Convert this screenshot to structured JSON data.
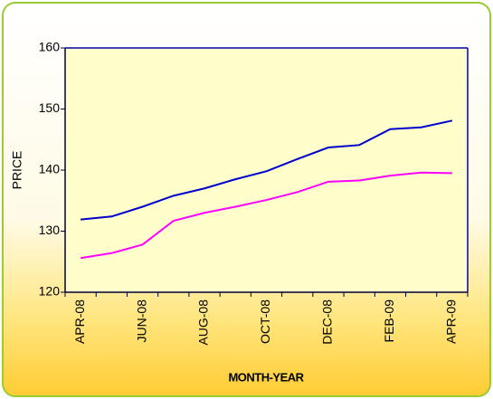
{
  "chart_data": {
    "type": "line",
    "x_label": "MONTH-YEAR",
    "y_label": "PRICE",
    "categories": [
      "APR-08",
      null,
      "JUN-08",
      null,
      "AUG-08",
      null,
      "OCT-08",
      null,
      "DEC-08",
      null,
      "FEB-09",
      null,
      "APR-09"
    ],
    "series": [
      {
        "color": "#0000cc",
        "values": [
          131.9,
          132.4,
          134.0,
          135.8,
          137.0,
          138.5,
          139.8,
          141.8,
          143.7,
          144.1,
          146.7,
          147.0,
          148.1
        ]
      },
      {
        "color": "#ff00ff",
        "values": [
          125.6,
          126.4,
          127.8,
          131.7,
          133.0,
          134.0,
          135.1,
          136.4,
          138.1,
          138.3,
          139.1,
          139.6,
          139.5
        ]
      }
    ],
    "ylim": [
      120,
      160
    ],
    "yticks": [
      120,
      130,
      140,
      150,
      160
    ],
    "grid": false
  }
}
